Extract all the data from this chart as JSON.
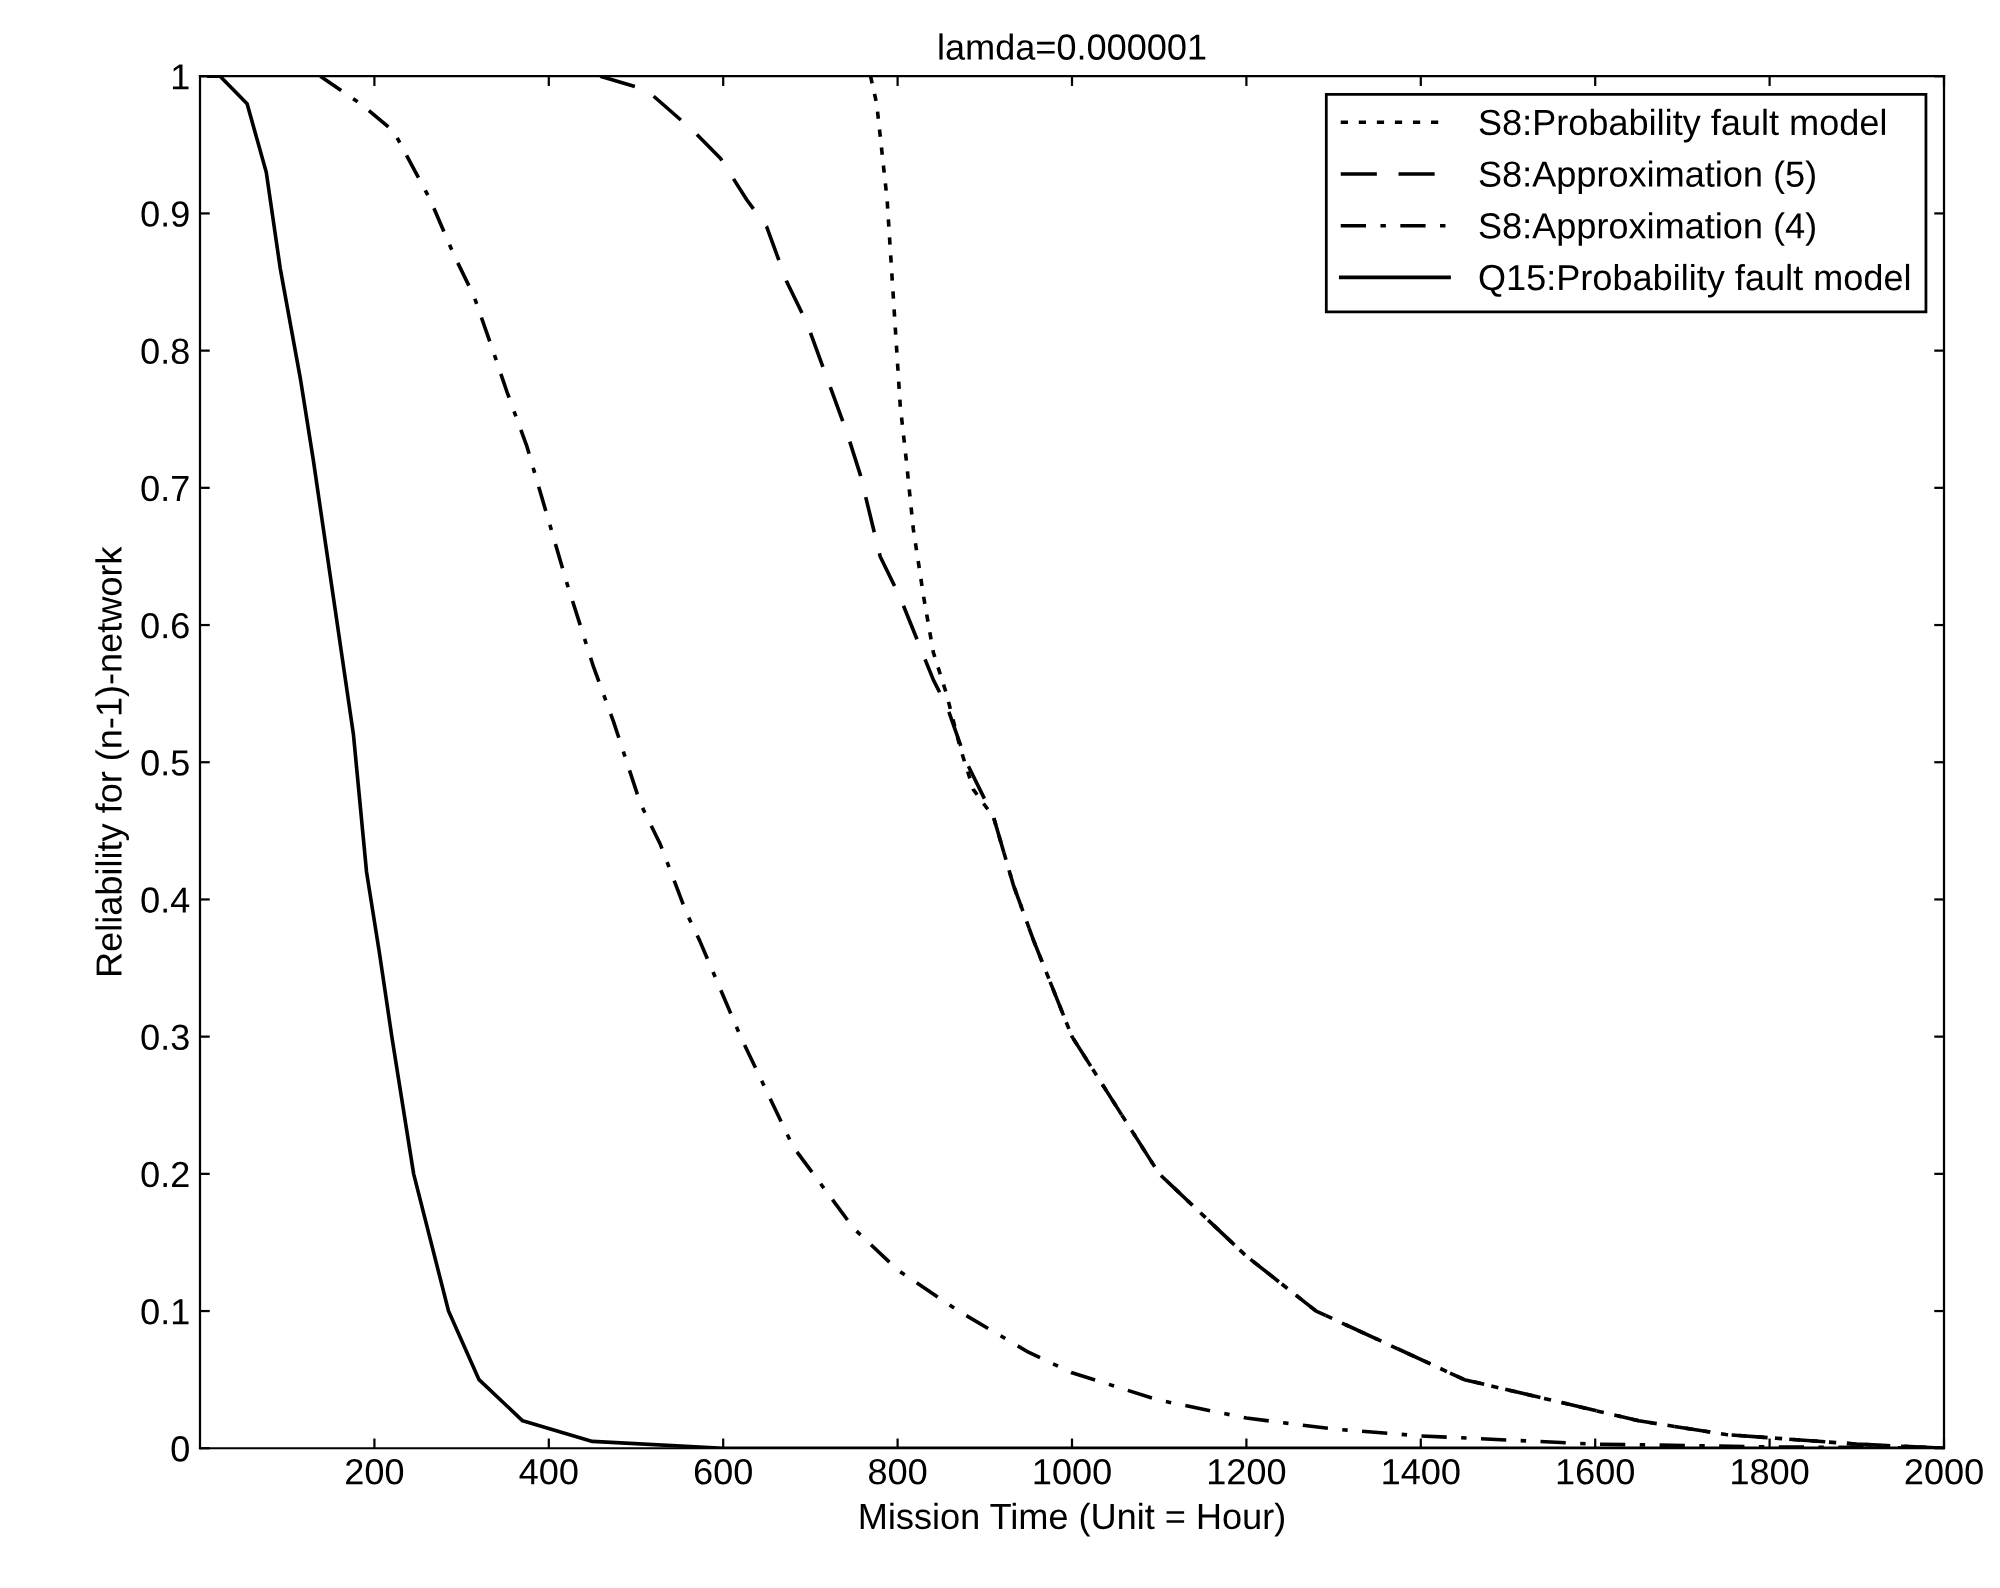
{
  "chart_data": {
    "type": "line",
    "title": "lamda=0.000001",
    "xlabel": "Mission Time (Unit = Hour)",
    "ylabel": "Reliability for (n-1)-network",
    "xlim": [
      0,
      2000
    ],
    "ylim": [
      0,
      1
    ],
    "xticks": [
      200,
      400,
      600,
      800,
      1000,
      1200,
      1400,
      1600,
      1800,
      2000
    ],
    "yticks": [
      0,
      0.1,
      0.2,
      0.3,
      0.4,
      0.5,
      0.6,
      0.7,
      0.8,
      0.9,
      1
    ],
    "grid": false,
    "legend": "top right",
    "marker": "none",
    "series": [
      {
        "name": "S8:Probability fault model",
        "color": "#000000",
        "line_style": "dotted",
        "x": [
          769,
          776,
          788,
          795,
          803,
          810,
          818,
          830,
          841,
          856,
          872,
          887,
          910,
          933,
          956,
          1000,
          1100,
          1200,
          1280,
          1450,
          1650,
          1750,
          1900,
          2000
        ],
        "values": [
          1.0,
          0.98,
          0.91,
          0.84,
          0.76,
          0.72,
          0.67,
          0.62,
          0.58,
          0.55,
          0.51,
          0.48,
          0.46,
          0.41,
          0.37,
          0.3,
          0.2,
          0.14,
          0.1,
          0.05,
          0.02,
          0.01,
          0.003,
          0
        ]
      },
      {
        "name": "S8:Approximation (5)",
        "color": "#000000",
        "line_style": "dashed",
        "x": [
          459,
          512,
          566,
          597,
          627,
          650,
          673,
          696,
          719,
          742,
          757,
          780,
          803,
          841,
          857,
          879,
          910,
          933,
          956,
          1000,
          1100,
          1200,
          1280,
          1450,
          1650,
          1750,
          1900,
          2000
        ],
        "values": [
          1.0,
          0.99,
          0.96,
          0.94,
          0.91,
          0.89,
          0.85,
          0.82,
          0.78,
          0.74,
          0.71,
          0.65,
          0.62,
          0.56,
          0.54,
          0.5,
          0.46,
          0.41,
          0.37,
          0.3,
          0.2,
          0.14,
          0.1,
          0.05,
          0.02,
          0.01,
          0.003,
          0
        ]
      },
      {
        "name": "S8:Approximation (4)",
        "color": "#000000",
        "line_style": "dashdot",
        "x": [
          138,
          184,
          222,
          264,
          291,
          314,
          336,
          352,
          375,
          398,
          421,
          451,
          474,
          505,
          528,
          558,
          573,
          620,
          680,
          750,
          800,
          870,
          950,
          1000,
          1100,
          1200,
          1300,
          1400,
          1600,
          1800,
          2000
        ],
        "values": [
          1.0,
          0.98,
          0.96,
          0.91,
          0.87,
          0.84,
          0.8,
          0.77,
          0.73,
          0.68,
          0.63,
          0.57,
          0.53,
          0.47,
          0.44,
          0.39,
          0.37,
          0.3,
          0.22,
          0.16,
          0.13,
          0.1,
          0.07,
          0.055,
          0.035,
          0.022,
          0.014,
          0.009,
          0.003,
          0.001,
          0
        ]
      },
      {
        "name": "Q15:Probability fault model",
        "color": "#000000",
        "line_style": "solid",
        "x": [
          10,
          23,
          54,
          76,
          92,
          115,
          130,
          153,
          176,
          191,
          206,
          220,
          245,
          285,
          320,
          370,
          450,
          600,
          2000
        ],
        "values": [
          1.0,
          1.0,
          0.98,
          0.93,
          0.86,
          0.78,
          0.72,
          0.62,
          0.52,
          0.42,
          0.36,
          0.3,
          0.2,
          0.1,
          0.05,
          0.02,
          0.005,
          0,
          0
        ]
      }
    ]
  }
}
